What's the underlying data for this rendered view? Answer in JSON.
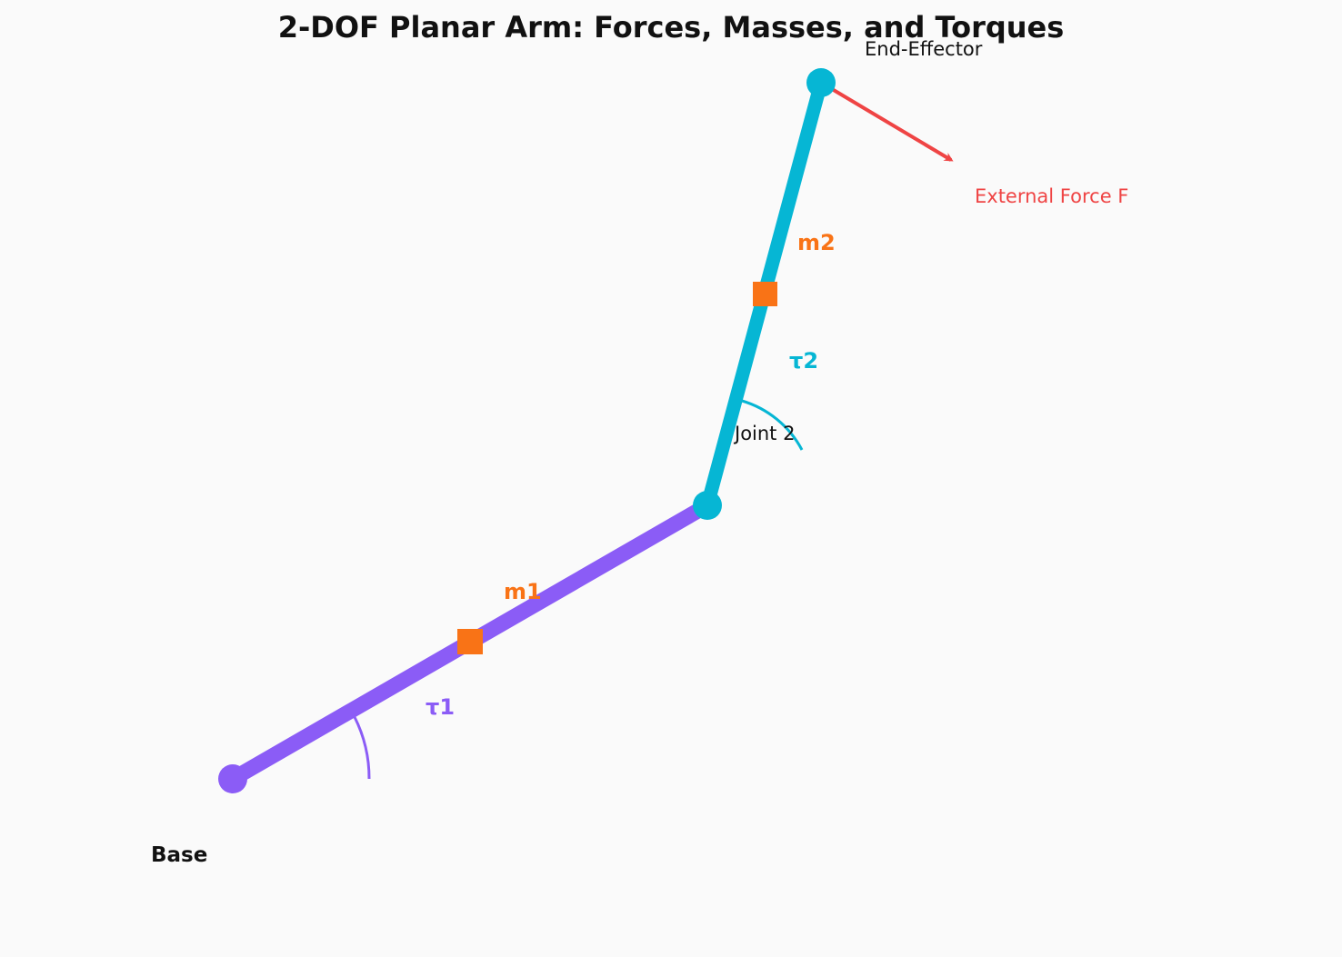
{
  "title": "2-DOF Planar Arm: Forces, Masses, and Torques",
  "labels": {
    "end_effector": "End-Effector",
    "external_force": "External Force F",
    "mass_2": "m2",
    "torque_2": "τ2",
    "joint_2": "Joint 2",
    "mass_1": "m1",
    "torque_1": "τ1",
    "base": "Base"
  },
  "colors": {
    "background": "#fafafa",
    "link_1": "#8b5cf6",
    "link_2": "#06b6d4",
    "mass": "#f97316",
    "force": "#ef4444",
    "text": "#111111"
  }
}
